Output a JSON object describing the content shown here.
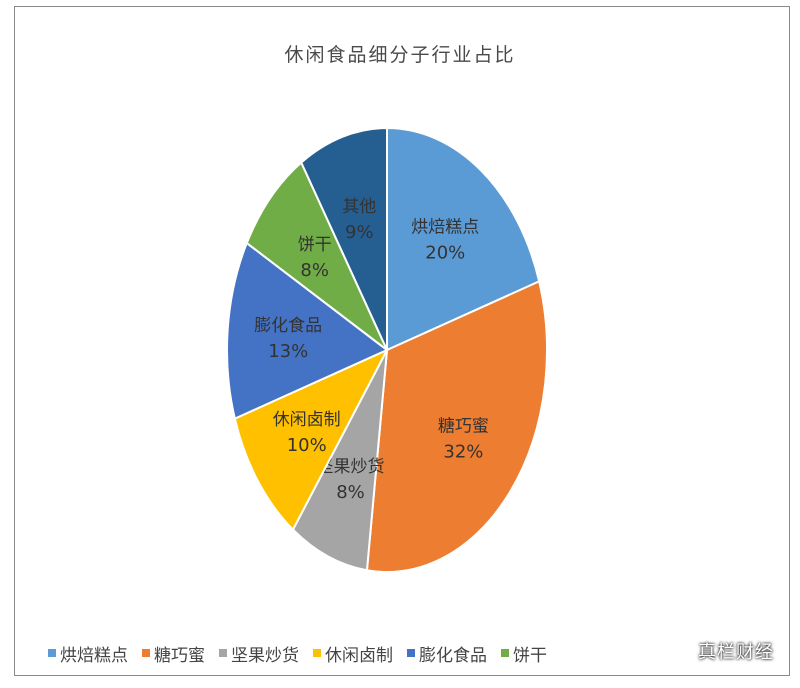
{
  "chart_data": {
    "type": "pie",
    "title": "休闲食品细分子行业占比",
    "slices": [
      {
        "label": "烘焙糕点",
        "value": 20,
        "value_label": "20%",
        "color": "#5b9bd5"
      },
      {
        "label": "糖巧蜜",
        "value": 32,
        "value_label": "32%",
        "color": "#ed7d31"
      },
      {
        "label": "坚果炒货",
        "value": 8,
        "value_label": "8%",
        "color": "#a5a5a5"
      },
      {
        "label": "休闲卤制",
        "value": 10,
        "value_label": "10%",
        "color": "#ffc000"
      },
      {
        "label": "膨化食品",
        "value": 13,
        "value_label": "13%",
        "color": "#4472c4"
      },
      {
        "label": "饼干",
        "value": 8,
        "value_label": "8%",
        "color": "#70ad47"
      },
      {
        "label": "其他",
        "value": 9,
        "value_label": "9%",
        "color": "#255e91"
      }
    ],
    "legend": {
      "position": "bottom",
      "items": [
        "烘焙糕点",
        "糖巧蜜",
        "坚果炒货",
        "休闲卤制",
        "膨化食品",
        "饼干"
      ]
    }
  },
  "watermark": "真栏财经"
}
